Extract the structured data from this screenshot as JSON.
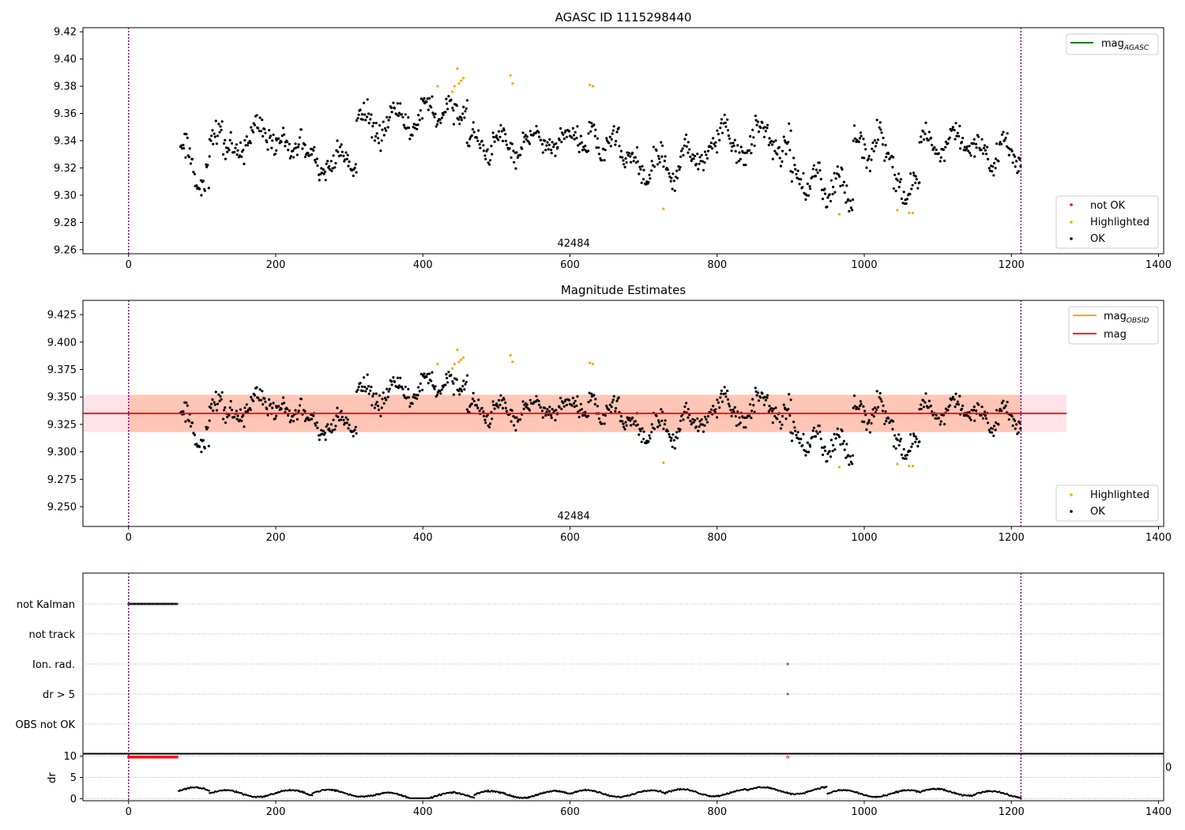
{
  "chart_data": [
    {
      "type": "scatter",
      "title": "AGASC ID 1115298440",
      "xlim": [
        -62,
        1407
      ],
      "ylim": [
        9.257,
        9.423
      ],
      "x_ticks": [
        0,
        200,
        400,
        600,
        800,
        1000,
        1200,
        1400
      ],
      "y_ticks": [
        9.26,
        9.28,
        9.3,
        9.32,
        9.34,
        9.36,
        9.38,
        9.4,
        9.42
      ],
      "y_tick_labels": [
        "9.26",
        "9.28",
        "9.30",
        "9.32",
        "9.34",
        "9.36",
        "9.38",
        "9.40",
        "9.42"
      ],
      "vlines": [
        0,
        1213
      ],
      "obsid_label": "42484",
      "obsid_label_x": 605,
      "legend_upper": [
        {
          "label": "mag",
          "sub": "AGASC",
          "color": "#008000"
        }
      ],
      "legend_lower": [
        {
          "label": "not OK",
          "color": "#ff0000"
        },
        {
          "label": "Highlighted",
          "color": "#ffa500"
        },
        {
          "label": "OK",
          "color": "#000000"
        }
      ]
    },
    {
      "type": "scatter",
      "title": "Magnitude Estimates",
      "xlim": [
        -62,
        1407
      ],
      "ylim": [
        9.232,
        9.438
      ],
      "x_ticks": [
        0,
        200,
        400,
        600,
        800,
        1000,
        1200,
        1400
      ],
      "y_ticks": [
        9.25,
        9.275,
        9.3,
        9.325,
        9.35,
        9.375,
        9.4,
        9.425
      ],
      "y_tick_labels": [
        "9.250",
        "9.275",
        "9.300",
        "9.325",
        "9.350",
        "9.375",
        "9.400",
        "9.425"
      ],
      "vlines": [
        0,
        1213
      ],
      "obsid_label": "42484",
      "obsid_label_x": 605,
      "mag_line": 9.335,
      "mag_band": [
        9.318,
        9.352
      ],
      "mag_band_x": [
        -62,
        1275
      ],
      "mag_obsid_band_x": [
        0,
        1213
      ],
      "legend_upper": [
        {
          "label": "mag",
          "sub": "OBSID",
          "color": "#ffa500"
        },
        {
          "label": "mag",
          "sub": "",
          "color": "#ff0000"
        }
      ],
      "legend_lower": [
        {
          "label": "Highlighted",
          "color": "#ffa500"
        },
        {
          "label": "OK",
          "color": "#000000"
        }
      ]
    },
    {
      "type": "scatter",
      "title": "",
      "xlim": [
        -62,
        1407
      ],
      "categories": [
        "not Kalman",
        "not track",
        "Ion. rad.",
        "dr > 5",
        "OBS not OK"
      ],
      "flag_points": {
        "not Kalman": [
          [
            0,
            67
          ]
        ],
        "not track": [],
        "Ion. rad.": [
          [
            896,
            897
          ]
        ],
        "dr > 5": [
          [
            896,
            897
          ]
        ],
        "OBS not OK": []
      },
      "vlines": [
        0,
        1213
      ]
    },
    {
      "type": "scatter",
      "title": "",
      "ylabel": "dr",
      "xlim": [
        -62,
        1407
      ],
      "ylim": [
        -0.5,
        10.5
      ],
      "x_ticks": [
        0,
        200,
        400,
        600,
        800,
        1000,
        1200,
        1400
      ],
      "y_ticks": [
        0,
        5,
        10
      ],
      "y_tick_labels": [
        "0",
        "5",
        "10"
      ],
      "clipped_value": 10,
      "clipped_x_ranges": [
        [
          0,
          67
        ],
        [
          896,
          897
        ]
      ],
      "overflow_tick_label": "0",
      "vlines": [
        0,
        1213
      ]
    }
  ],
  "colors": {
    "ok": "#000000",
    "highlighted": "#ffa500",
    "not_ok": "#ff0000",
    "vline": "#800080",
    "mag_agasc": "#008000",
    "mag_obsid": "#ffa500",
    "mag": "#ff0000",
    "band_mag": "#ffc0cb",
    "band_obsid": "#ffa07a",
    "grid": "#b0b0b0"
  },
  "highlighted_points": [
    [
      420,
      9.38
    ],
    [
      440,
      9.376
    ],
    [
      443,
      9.38
    ],
    [
      447,
      9.393
    ],
    [
      449,
      9.382
    ],
    [
      452,
      9.384
    ],
    [
      455,
      9.386
    ],
    [
      519,
      9.388
    ],
    [
      522,
      9.382
    ],
    [
      627,
      9.381
    ],
    [
      631,
      9.38
    ],
    [
      727,
      9.29
    ],
    [
      966,
      9.286
    ],
    [
      1045,
      9.289
    ],
    [
      1061,
      9.287
    ],
    [
      1066,
      9.287
    ]
  ],
  "ok_segments": [
    {
      "x": [
        70,
        110
      ],
      "base": 9.32,
      "slope": 0.0,
      "amp": 0.018,
      "period": 40,
      "noise": 0.016
    },
    {
      "x": [
        110,
        200
      ],
      "base": 9.335,
      "slope": 0.0001,
      "amp": 0.01,
      "period": 55,
      "noise": 0.014
    },
    {
      "x": [
        200,
        240
      ],
      "base": 9.337,
      "slope": 0.0,
      "amp": 0.006,
      "period": 35,
      "noise": 0.012
    },
    {
      "x": [
        240,
        310
      ],
      "base": 9.325,
      "slope": 0.0,
      "amp": 0.008,
      "period": 40,
      "noise": 0.011
    },
    {
      "x": [
        310,
        400
      ],
      "base": 9.35,
      "slope": 0.0001,
      "amp": 0.01,
      "period": 45,
      "noise": 0.013
    },
    {
      "x": [
        400,
        460
      ],
      "base": 9.362,
      "slope": 0.0,
      "amp": 0.008,
      "period": 30,
      "noise": 0.01
    },
    {
      "x": [
        460,
        540
      ],
      "base": 9.338,
      "slope": 0.0,
      "amp": 0.008,
      "period": 40,
      "noise": 0.013
    },
    {
      "x": [
        540,
        625
      ],
      "base": 9.34,
      "slope": 0.0,
      "amp": 0.006,
      "period": 50,
      "noise": 0.01
    },
    {
      "x": [
        625,
        680
      ],
      "base": 9.342,
      "slope": -0.0002,
      "amp": 0.01,
      "period": 30,
      "noise": 0.012
    },
    {
      "x": [
        680,
        750
      ],
      "base": 9.32,
      "slope": 0.0,
      "amp": 0.01,
      "period": 35,
      "noise": 0.012
    },
    {
      "x": [
        750,
        800
      ],
      "base": 9.328,
      "slope": 0.0001,
      "amp": 0.008,
      "period": 40,
      "noise": 0.011
    },
    {
      "x": [
        800,
        900
      ],
      "base": 9.34,
      "slope": 0.0,
      "amp": 0.012,
      "period": 50,
      "noise": 0.012
    },
    {
      "x": [
        900,
        985
      ],
      "base": 9.312,
      "slope": -0.0001,
      "amp": 0.01,
      "period": 30,
      "noise": 0.012
    },
    {
      "x": [
        985,
        1040
      ],
      "base": 9.335,
      "slope": 0.0,
      "amp": 0.012,
      "period": 30,
      "noise": 0.012
    },
    {
      "x": [
        1040,
        1075
      ],
      "base": 9.305,
      "slope": 0.0,
      "amp": 0.008,
      "period": 25,
      "noise": 0.01
    },
    {
      "x": [
        1075,
        1150
      ],
      "base": 9.335,
      "slope": 0.0001,
      "amp": 0.01,
      "period": 40,
      "noise": 0.011
    },
    {
      "x": [
        1150,
        1213
      ],
      "base": 9.328,
      "slope": 0.0001,
      "amp": 0.01,
      "period": 35,
      "noise": 0.012
    }
  ],
  "dr_segments": [
    {
      "x": [
        68,
        110
      ],
      "base": 1.8
    },
    {
      "x": [
        110,
        250
      ],
      "base": 1.2
    },
    {
      "x": [
        250,
        330
      ],
      "base": 1.3
    },
    {
      "x": [
        330,
        470
      ],
      "base": 0.6
    },
    {
      "x": [
        470,
        600
      ],
      "base": 1.0
    },
    {
      "x": [
        600,
        730
      ],
      "base": 1.2
    },
    {
      "x": [
        730,
        840
      ],
      "base": 1.4
    },
    {
      "x": [
        840,
        950
      ],
      "base": 1.9
    },
    {
      "x": [
        950,
        1075
      ],
      "base": 1.2
    },
    {
      "x": [
        1075,
        1150
      ],
      "base": 1.5
    },
    {
      "x": [
        1150,
        1213
      ],
      "base": 1.0
    }
  ]
}
